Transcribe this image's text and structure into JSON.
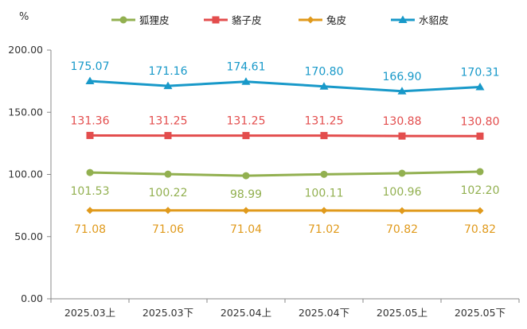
{
  "chart_data": {
    "type": "line",
    "unit": "%",
    "categories": [
      "2025.03上",
      "2025.03下",
      "2025.04上",
      "2025.04下",
      "2025.05上",
      "2025.05下"
    ],
    "ylim": [
      0,
      200
    ],
    "yticks": [
      "0.00",
      "50.00",
      "100.00",
      "150.00",
      "200.00"
    ],
    "grid": false,
    "legend_position": "top",
    "series": [
      {
        "name": "狐狸皮",
        "color": "#92b050",
        "marker": "circle",
        "label_position": "below",
        "values": [
          101.53,
          100.22,
          98.99,
          100.11,
          100.96,
          102.2
        ],
        "labels": [
          "101.53",
          "100.22",
          "98.99",
          "100.11",
          "100.96",
          "102.20"
        ]
      },
      {
        "name": "貉子皮",
        "color": "#e34d4d",
        "marker": "square",
        "label_position": "above",
        "values": [
          131.36,
          131.25,
          131.25,
          131.25,
          130.88,
          130.8
        ],
        "labels": [
          "131.36",
          "131.25",
          "131.25",
          "131.25",
          "130.88",
          "130.80"
        ]
      },
      {
        "name": "兔皮",
        "color": "#e09a1c",
        "marker": "diamond",
        "label_position": "below",
        "values": [
          71.08,
          71.06,
          71.04,
          71.02,
          70.82,
          70.82
        ],
        "labels": [
          "71.08",
          "71.06",
          "71.04",
          "71.02",
          "70.82",
          "70.82"
        ]
      },
      {
        "name": "水貂皮",
        "color": "#1899c9",
        "marker": "triangle",
        "label_position": "above",
        "values": [
          175.07,
          171.16,
          174.61,
          170.8,
          166.9,
          170.31
        ],
        "labels": [
          "175.07",
          "171.16",
          "174.61",
          "170.80",
          "166.90",
          "170.31"
        ]
      }
    ]
  }
}
